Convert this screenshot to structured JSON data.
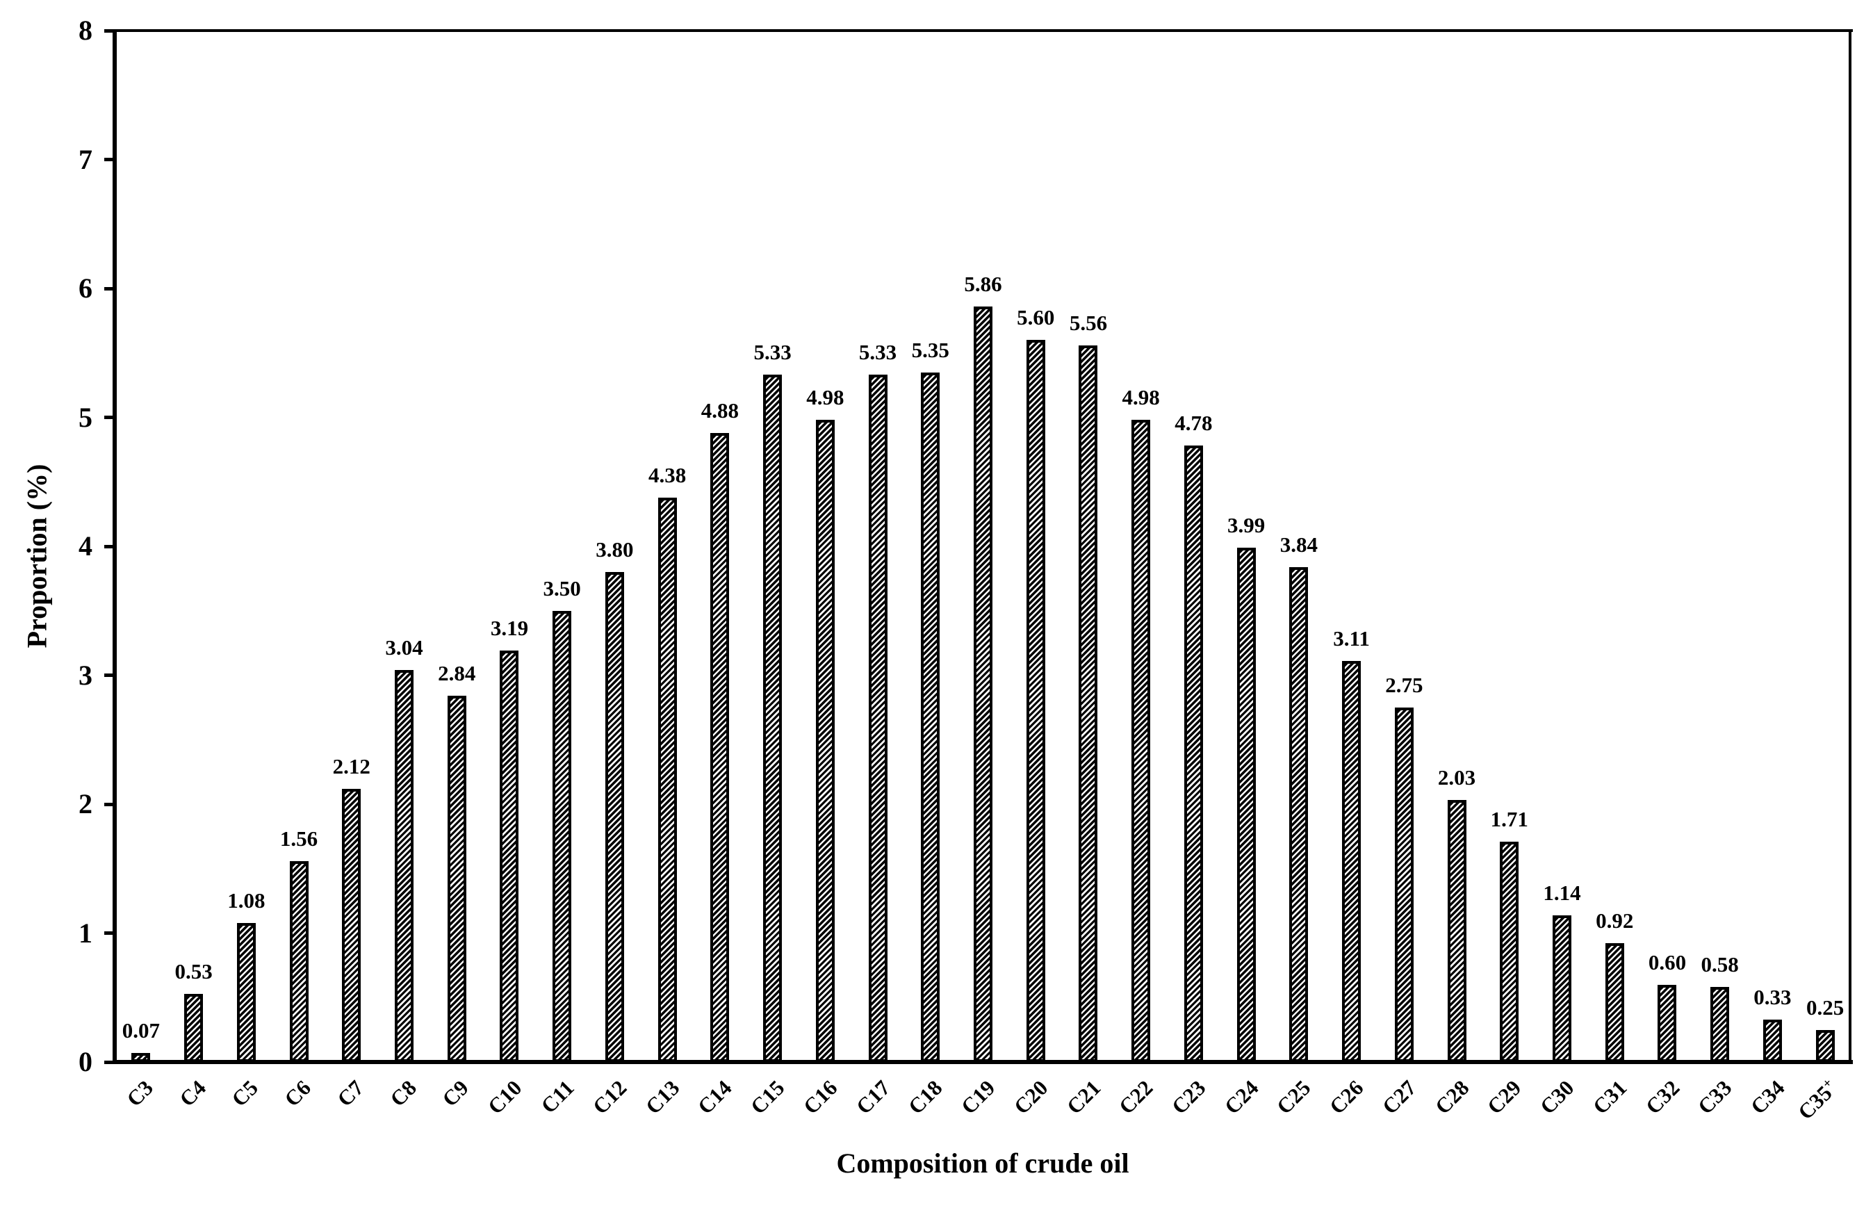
{
  "figure": {
    "background_color": "#ffffff",
    "ink_color": "#000000"
  },
  "chart_data": {
    "type": "bar",
    "title": "",
    "xlabel": "Composition of crude oil",
    "ylabel": "Proportion (%)",
    "categories": [
      "C3",
      "C4",
      "C5",
      "C6",
      "C7",
      "C8",
      "C9",
      "C10",
      "C11",
      "C12",
      "C13",
      "C14",
      "C15",
      "C16",
      "C17",
      "C18",
      "C19",
      "C20",
      "C21",
      "C22",
      "C23",
      "C24",
      "C25",
      "C26",
      "C27",
      "C28",
      "C29",
      "C30",
      "C31",
      "C32",
      "C33",
      "C34",
      "C35+"
    ],
    "values": [
      0.07,
      0.53,
      1.08,
      1.56,
      2.12,
      3.04,
      2.84,
      3.19,
      3.5,
      3.8,
      4.38,
      4.88,
      5.33,
      4.98,
      5.33,
      5.35,
      5.86,
      5.6,
      5.56,
      4.98,
      4.78,
      3.99,
      3.84,
      3.11,
      2.75,
      2.03,
      1.71,
      1.14,
      0.92,
      0.6,
      0.58,
      0.33,
      0.25
    ],
    "bar_value_labels": [
      "0.07",
      "0.53",
      "1.08",
      "1.56",
      "2.12",
      "3.04",
      "2.84",
      "3.19",
      "3.50",
      "3.80",
      "4.38",
      "4.88",
      "5.33",
      "4.98",
      "5.33",
      "5.35",
      "5.86",
      "5.60",
      "5.56",
      "4.98",
      "4.78",
      "3.99",
      "3.84",
      "3.11",
      "2.75",
      "2.03",
      "1.71",
      "1.14",
      "0.92",
      "0.60",
      "0.58",
      "0.33",
      "0.25"
    ],
    "ylim": [
      0,
      8
    ],
    "ytick_labels": [
      "0",
      "1",
      "2",
      "3",
      "4",
      "5",
      "6",
      "7",
      "8"
    ],
    "grid": false,
    "legend": "none",
    "bar_fill": "diagonal-hatch",
    "bar_color": "#000000",
    "bar_background": "#ffffff"
  }
}
